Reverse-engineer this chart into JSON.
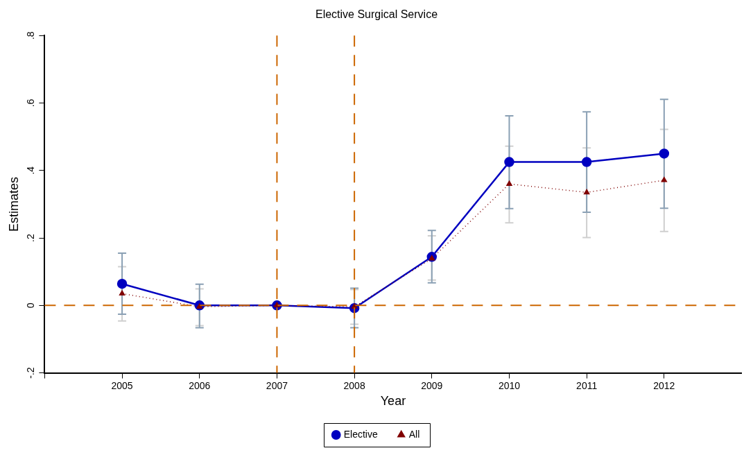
{
  "chart_data": {
    "type": "line",
    "title": "Elective Surgical Service",
    "xlabel": "Year",
    "ylabel": "Estimates",
    "x": [
      2005,
      2006,
      2007,
      2008,
      2009,
      2010,
      2011,
      2012
    ],
    "series": [
      {
        "name": "Elective",
        "color": "#0000c0",
        "marker": "circle",
        "line_style": "solid",
        "values": [
          0.064,
          0.0,
          0.0,
          -0.008,
          0.144,
          0.425,
          0.425,
          0.45
        ],
        "errors": [
          [
            -0.026,
            0.155
          ],
          [
            -0.066,
            0.063
          ],
          null,
          [
            -0.066,
            0.051
          ],
          [
            0.067,
            0.222
          ],
          [
            0.287,
            0.562
          ],
          [
            0.276,
            0.574
          ],
          [
            0.288,
            0.611
          ]
        ]
      },
      {
        "name": "All",
        "color": "#800000",
        "marker": "triangle",
        "line_style": "dotted",
        "values": [
          0.035,
          -0.004,
          0.0,
          -0.004,
          0.139,
          0.36,
          0.335,
          0.371
        ],
        "errors": [
          [
            -0.046,
            0.115
          ],
          [
            -0.06,
            0.049
          ],
          null,
          [
            -0.056,
            0.047
          ],
          [
            0.075,
            0.206
          ],
          [
            0.245,
            0.472
          ],
          [
            0.201,
            0.467
          ],
          [
            0.219,
            0.522
          ]
        ]
      }
    ],
    "xlim": [
      2004,
      2013
    ],
    "xticks": [
      {
        "value": 2004,
        "label": null
      },
      2005,
      2006,
      2007,
      2008,
      2009,
      2010,
      2011,
      2012
    ],
    "ylim": [
      -0.2,
      0.8
    ],
    "yticks": [
      {
        "value": -0.2,
        "label": "-.2"
      },
      0,
      {
        "value": 0.2,
        "label": ".2"
      },
      {
        "value": 0.4,
        "label": ".4"
      },
      {
        "value": 0.6,
        "label": ".6"
      },
      {
        "value": 0.8,
        "label": ".8"
      }
    ],
    "ref_lines": [
      {
        "axis": "y",
        "value": 0,
        "color": "#cc6600",
        "line_style": "dashed"
      },
      {
        "axis": "x",
        "value": 2007,
        "color": "#cc6600",
        "line_style": "dashed"
      },
      {
        "axis": "x",
        "value": 2008,
        "color": "#cc6600",
        "line_style": "dashed"
      }
    ],
    "grid": false,
    "legend": "bottom"
  }
}
